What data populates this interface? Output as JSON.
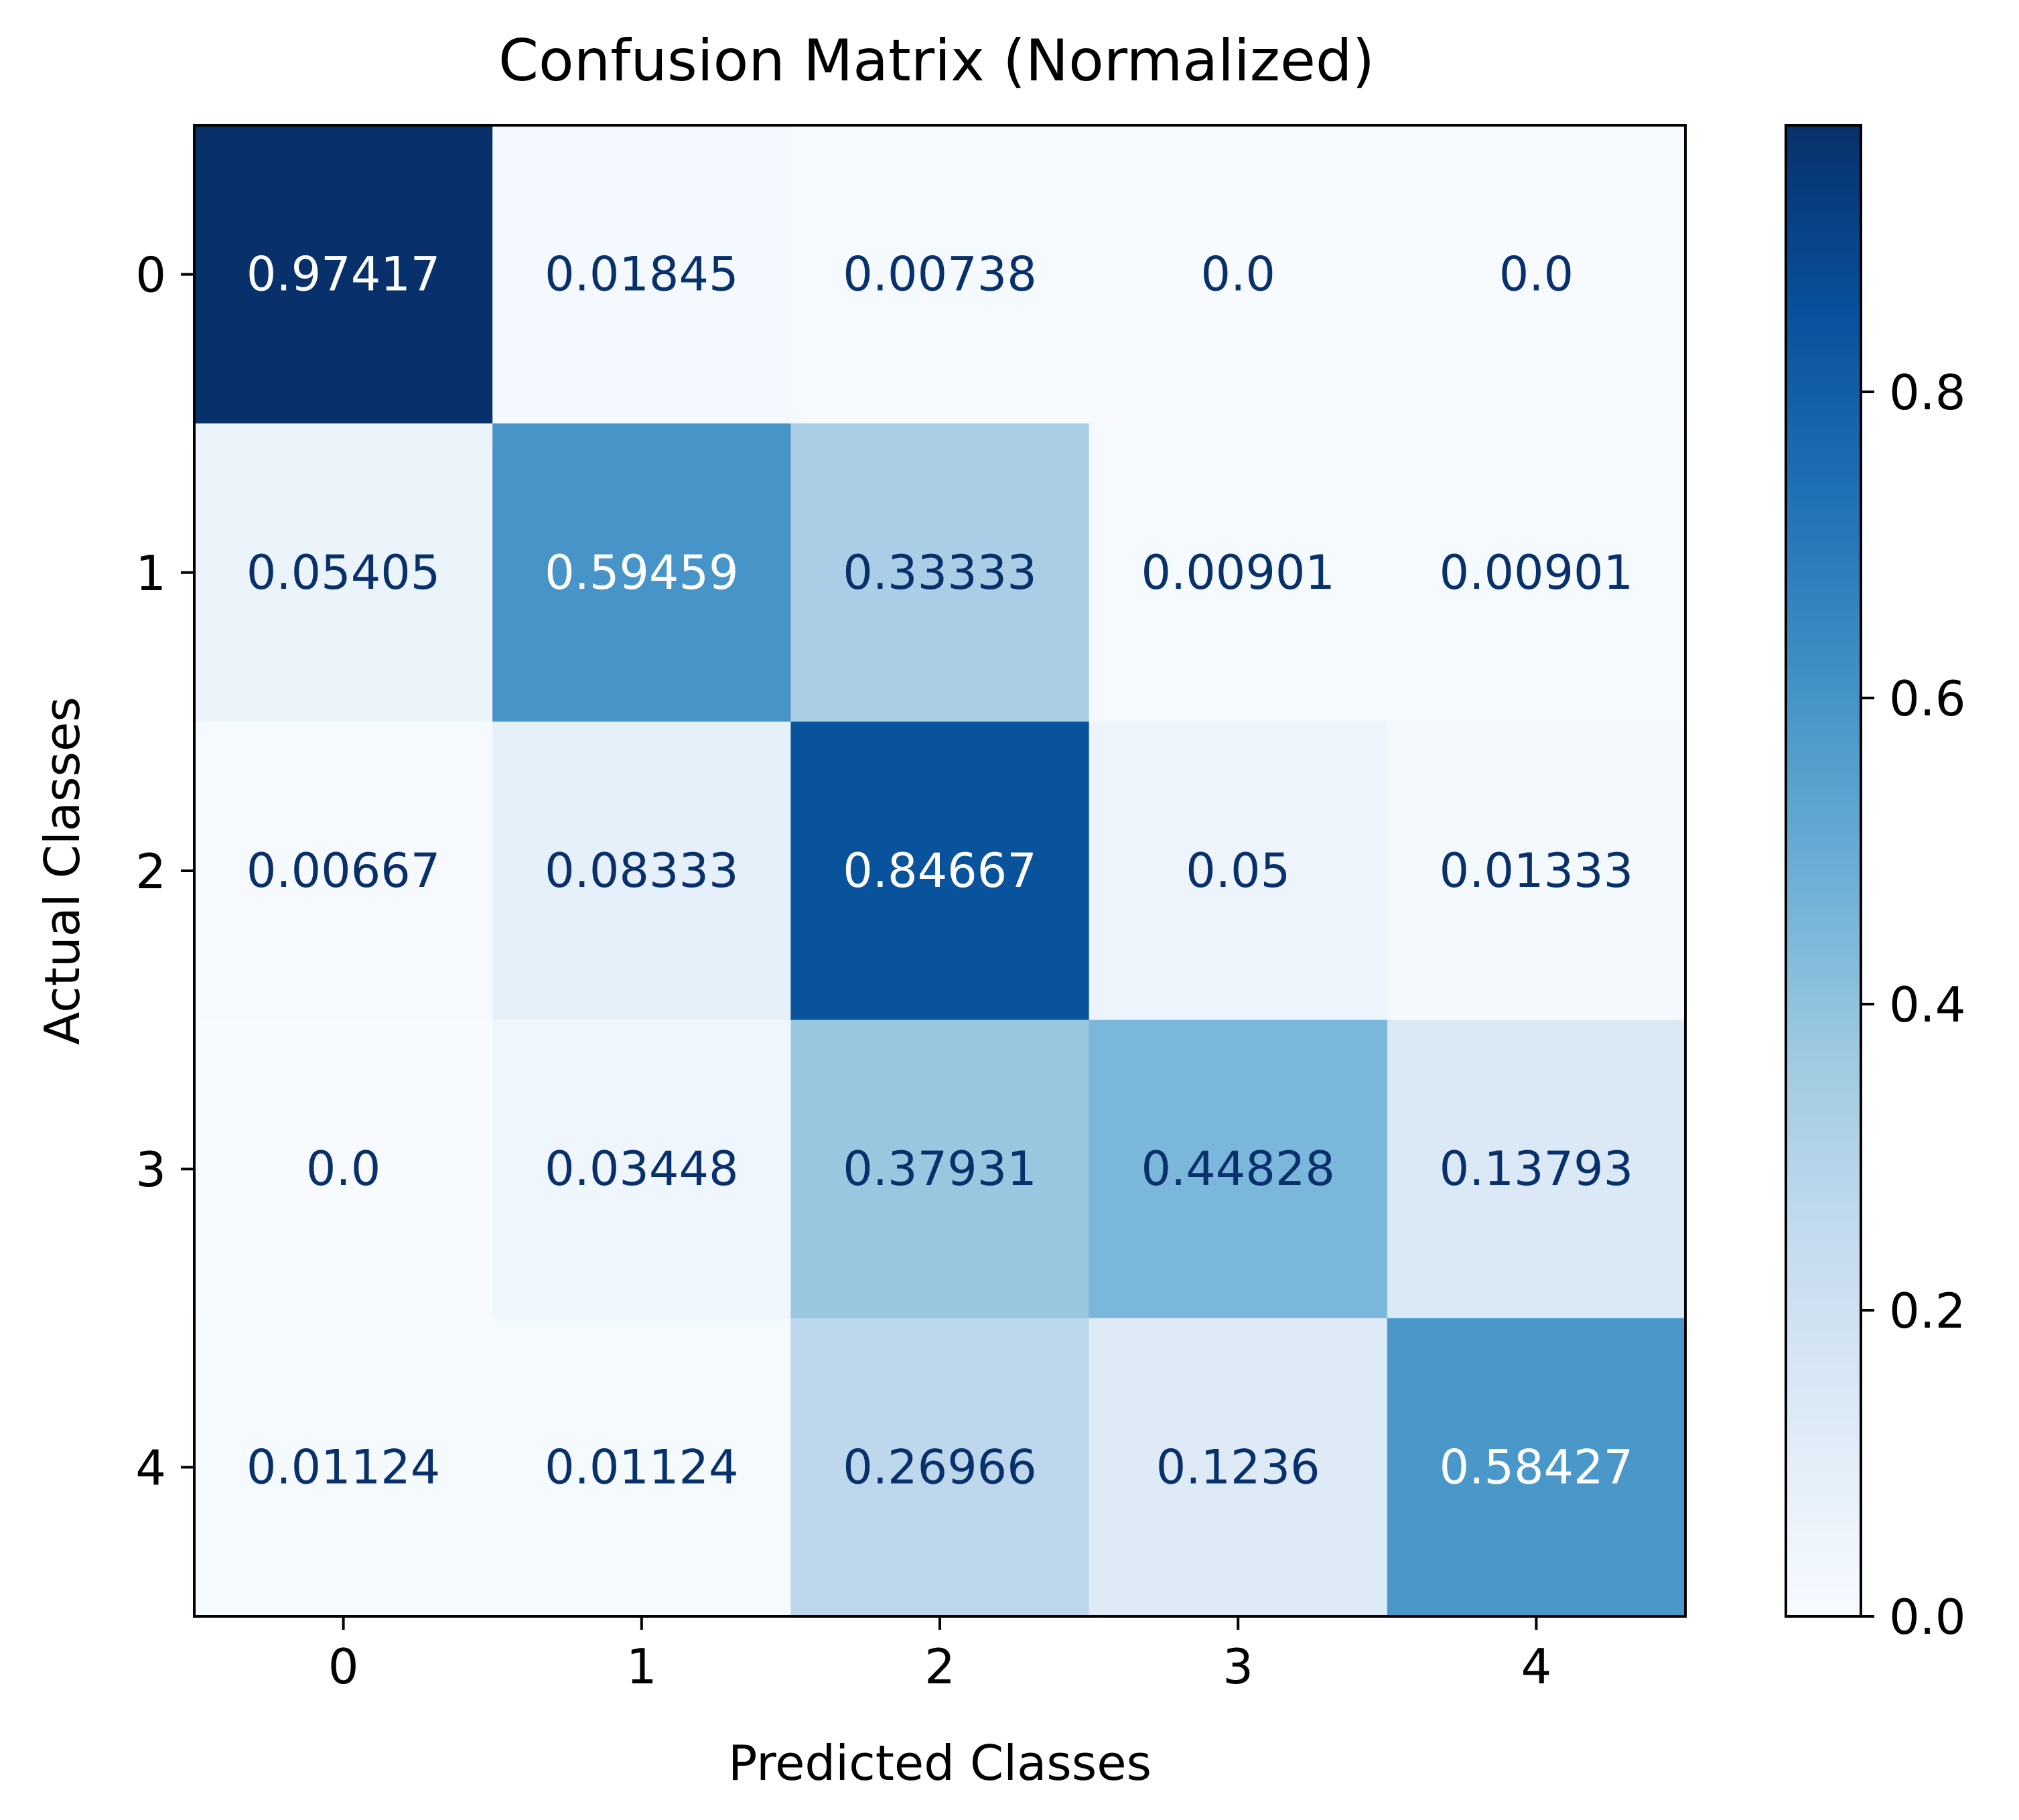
{
  "chart_data": {
    "type": "heatmap",
    "title": "Confusion Matrix (Normalized)",
    "xlabel": "Predicted Classes",
    "ylabel": "Actual Classes",
    "x_categories": [
      "0",
      "1",
      "2",
      "3",
      "4"
    ],
    "y_categories": [
      "0",
      "1",
      "2",
      "3",
      "4"
    ],
    "values": [
      [
        0.97417,
        0.01845,
        0.00738,
        0.0,
        0.0
      ],
      [
        0.05405,
        0.59459,
        0.33333,
        0.00901,
        0.00901
      ],
      [
        0.00667,
        0.08333,
        0.84667,
        0.05,
        0.01333
      ],
      [
        0.0,
        0.03448,
        0.37931,
        0.44828,
        0.13793
      ],
      [
        0.01124,
        0.01124,
        0.26966,
        0.1236,
        0.58427
      ]
    ],
    "cell_labels": [
      [
        "0.97417",
        "0.01845",
        "0.00738",
        "0.0",
        "0.0"
      ],
      [
        "0.05405",
        "0.59459",
        "0.33333",
        "0.00901",
        "0.00901"
      ],
      [
        "0.00667",
        "0.08333",
        "0.84667",
        "0.05",
        "0.01333"
      ],
      [
        "0.0",
        "0.03448",
        "0.37931",
        "0.44828",
        "0.13793"
      ],
      [
        "0.01124",
        "0.01124",
        "0.26966",
        "0.1236",
        "0.58427"
      ]
    ],
    "colorbar": {
      "colormap": "Blues",
      "range": [
        0.0,
        0.97417
      ],
      "ticks": [
        0.0,
        0.2,
        0.4,
        0.6,
        0.8
      ],
      "tick_labels": [
        "0.0",
        "0.2",
        "0.4",
        "0.6",
        "0.8"
      ]
    },
    "grid": false,
    "colors": {
      "light_text": "#ffffff",
      "dark_text": "#08306b",
      "frame": "#000000"
    }
  }
}
